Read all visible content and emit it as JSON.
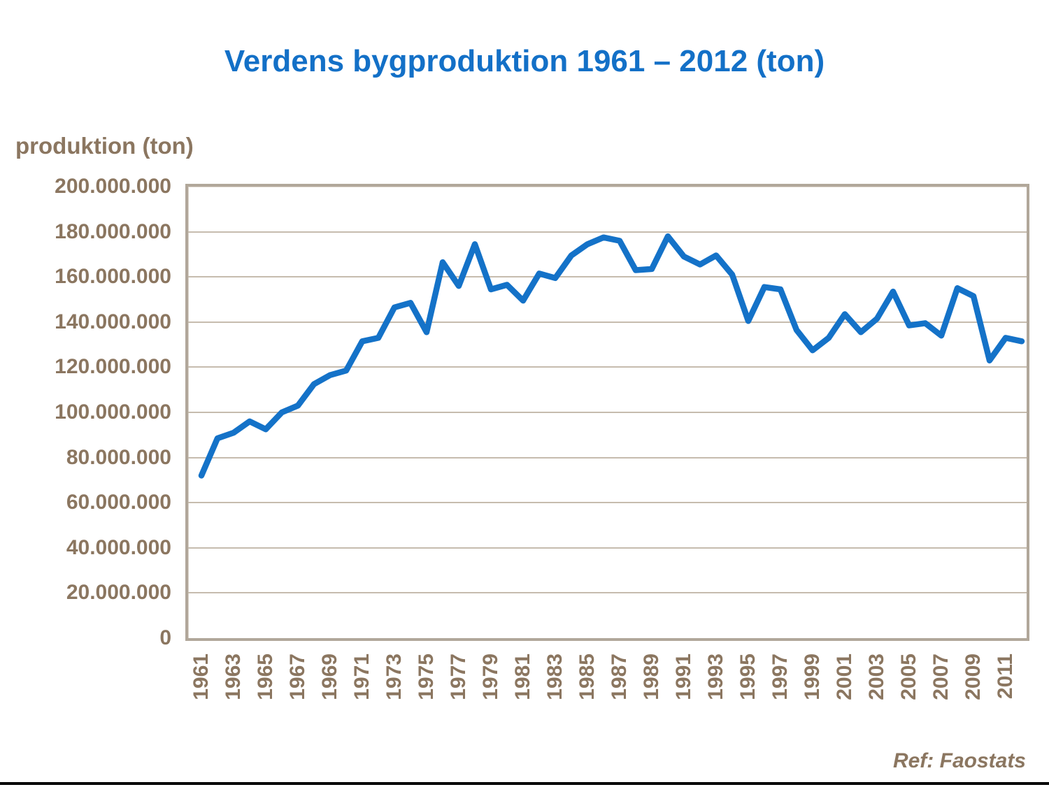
{
  "title": "Verdens bygproduktion 1961 – 2012 (ton)",
  "y_axis_title": "produktion (ton)",
  "footer": {
    "ref_label": "Ref: Faostats"
  },
  "colors": {
    "title_blue": "#1370C7",
    "line_blue": "#1472C8",
    "axis_text_brown": "#8B7660",
    "gridline": "#C6BCAE",
    "plot_border": "#B1A79A",
    "bottom_rule": "#000000",
    "background": "#FFFFFF"
  },
  "chart_data": {
    "type": "line",
    "title": "Verdens bygproduktion 1961 – 2012 (ton)",
    "xlabel": "",
    "ylabel": "produktion (ton)",
    "unit": "ton",
    "ylim": [
      0,
      200000000
    ],
    "y_tick_step": 20000000,
    "grid": "horizontal",
    "legend": "none",
    "y_tick_labels": [
      "200.000.000",
      "180.000.000",
      "160.000.000",
      "140.000.000",
      "120.000.000",
      "100.000.000",
      "80.000.000",
      "60.000.000",
      "40.000.000",
      "20.000.000",
      "0"
    ],
    "x_tick_labels": [
      "1961",
      "1963",
      "1965",
      "1967",
      "1969",
      "1971",
      "1973",
      "1975",
      "1977",
      "1979",
      "1981",
      "1983",
      "1985",
      "1987",
      "1989",
      "1991",
      "1993",
      "1995",
      "1997",
      "1999",
      "2001",
      "2003",
      "2005",
      "2007",
      "2009",
      "2011"
    ],
    "years": [
      1961,
      1962,
      1963,
      1964,
      1965,
      1966,
      1967,
      1968,
      1969,
      1970,
      1971,
      1972,
      1973,
      1974,
      1975,
      1976,
      1977,
      1978,
      1979,
      1980,
      1981,
      1982,
      1983,
      1984,
      1985,
      1986,
      1987,
      1988,
      1989,
      1990,
      1991,
      1992,
      1993,
      1994,
      1995,
      1996,
      1997,
      1998,
      1999,
      2000,
      2001,
      2002,
      2003,
      2004,
      2005,
      2006,
      2007,
      2008,
      2009,
      2010,
      2011,
      2012
    ],
    "series": [
      {
        "name": "Verdens bygproduktion (ton)",
        "values": [
          72000000,
          88500000,
          91000000,
          96000000,
          92500000,
          100000000,
          103000000,
          112500000,
          116500000,
          118500000,
          131500000,
          133000000,
          146500000,
          148500000,
          135500000,
          166500000,
          156000000,
          174500000,
          154500000,
          156500000,
          149500000,
          161500000,
          159500000,
          169500000,
          174500000,
          177500000,
          176000000,
          163000000,
          163500000,
          178000000,
          169000000,
          165500000,
          169500000,
          161000000,
          140500000,
          155500000,
          154500000,
          136500000,
          127500000,
          133000000,
          143500000,
          135500000,
          141500000,
          153500000,
          138500000,
          139500000,
          134000000,
          155000000,
          151500000,
          123000000,
          133000000,
          131500000
        ]
      }
    ]
  }
}
